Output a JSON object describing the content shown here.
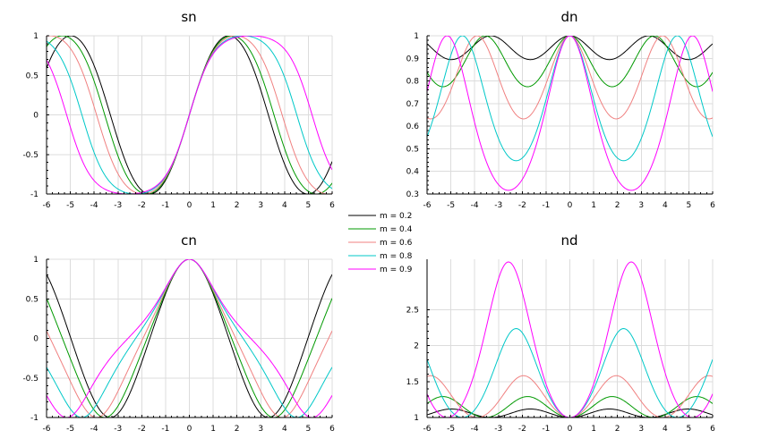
{
  "chart_data": [
    {
      "id": "sn",
      "type": "line",
      "title": "sn",
      "function": "sn",
      "xlim": [
        -6,
        6
      ],
      "ylim": [
        -1,
        1
      ],
      "xticks": [
        -6,
        -5,
        -4,
        -3,
        -2,
        -1,
        0,
        1,
        2,
        3,
        4,
        5,
        6
      ],
      "xtick_labels": [
        "-6",
        "-5",
        "-4",
        "-3",
        "-2",
        "-1",
        "0",
        "1",
        "2",
        "3",
        "4",
        "5",
        "6"
      ],
      "yticks": [
        -1,
        -0.5,
        0,
        0.5,
        1
      ],
      "ytick_labels": [
        "-1",
        "-0.5",
        "0",
        "0.5",
        "1"
      ],
      "grid": true
    },
    {
      "id": "dn",
      "type": "line",
      "title": "dn",
      "function": "dn",
      "xlim": [
        -6,
        6
      ],
      "ylim": [
        0.3,
        1
      ],
      "xticks": [
        -6,
        -5,
        -4,
        -3,
        -2,
        -1,
        0,
        1,
        2,
        3,
        4,
        5,
        6
      ],
      "xtick_labels": [
        "-6",
        "-5",
        "-4",
        "-3",
        "-2",
        "-1",
        "0",
        "1",
        "2",
        "3",
        "4",
        "5",
        "6"
      ],
      "yticks": [
        0.3,
        0.4,
        0.5,
        0.6,
        0.7,
        0.8,
        0.9,
        1
      ],
      "ytick_labels": [
        "0.3",
        "0.4",
        "0.5",
        "0.6",
        "0.7",
        "0.8",
        "0.9",
        "1"
      ],
      "grid": true
    },
    {
      "id": "cn",
      "type": "line",
      "title": "cn",
      "function": "cn",
      "xlim": [
        -6,
        6
      ],
      "ylim": [
        -1,
        1
      ],
      "xticks": [
        -6,
        -5,
        -4,
        -3,
        -2,
        -1,
        0,
        1,
        2,
        3,
        4,
        5,
        6
      ],
      "xtick_labels": [
        "-6",
        "-5",
        "-4",
        "-3",
        "-2",
        "-1",
        "0",
        "1",
        "2",
        "3",
        "4",
        "5",
        "6"
      ],
      "yticks": [
        -1,
        -0.5,
        0,
        0.5,
        1
      ],
      "ytick_labels": [
        "-1",
        "-0.5",
        "0",
        "0.5",
        "1"
      ],
      "grid": true
    },
    {
      "id": "nd",
      "type": "line",
      "title": "nd",
      "function": "nd",
      "xlim": [
        -6,
        6
      ],
      "ylim": [
        1,
        3.2
      ],
      "xticks": [
        -6,
        -5,
        -4,
        -3,
        -2,
        -1,
        0,
        1,
        2,
        3,
        4,
        5,
        6
      ],
      "xtick_labels": [
        "-6",
        "-5",
        "-4",
        "-3",
        "-2",
        "-1",
        "0",
        "1",
        "2",
        "3",
        "4",
        "5",
        "6"
      ],
      "yticks": [
        1,
        1.5,
        2,
        2.5
      ],
      "ytick_labels": [
        "1",
        "1.5",
        "2",
        "2.5"
      ],
      "grid": true
    }
  ],
  "series": [
    {
      "name": "m = 0.2",
      "m": 0.2,
      "color": "#000000"
    },
    {
      "name": "m = 0.4",
      "m": 0.4,
      "color": "#009900"
    },
    {
      "name": "m = 0.6",
      "m": 0.6,
      "color": "#f08080"
    },
    {
      "name": "m = 0.8",
      "m": 0.8,
      "color": "#00c8c8"
    },
    {
      "name": "m = 0.9",
      "m": 0.9,
      "color": "#ff00ff"
    }
  ],
  "legend": {
    "placement": "center"
  }
}
